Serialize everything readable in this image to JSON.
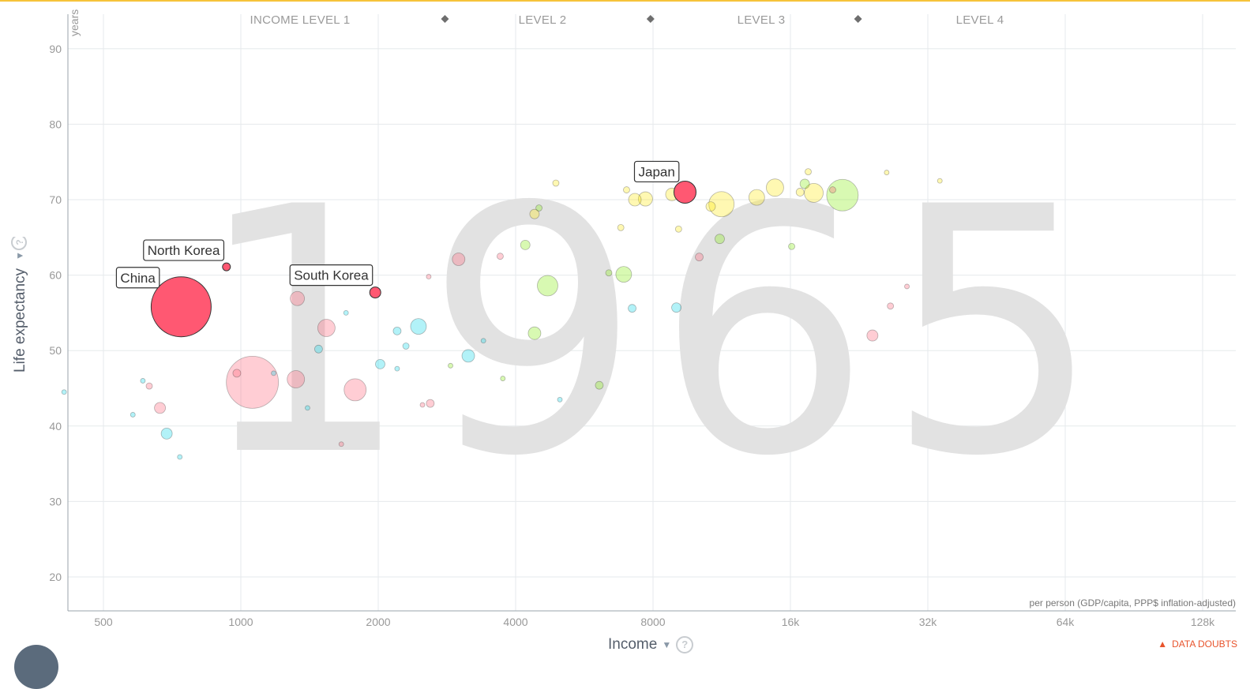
{
  "colors": {
    "accent_bar": "#f6c33b",
    "asia": "#ff5872",
    "africa": "#00d5e9",
    "americas": "#7feb00",
    "europe": "#ffe700",
    "year_text": "#e2e2e2"
  },
  "header": {
    "levels": [
      "INCOME LEVEL 1",
      "LEVEL 2",
      "LEVEL 3",
      "LEVEL 4"
    ]
  },
  "axes": {
    "y_unit": "years",
    "y_title": "Life expectancy",
    "x_title": "Income",
    "units_note": "per person (GDP/capita, PPP$ inflation-adjusted)"
  },
  "footer": {
    "data_doubts": "DATA DOUBTS"
  },
  "chart_data": {
    "type": "scatter",
    "year": "1965",
    "xlabel": "Income",
    "ylabel": "Life expectancy",
    "x_scale": "log",
    "xlim": [
      400,
      160000
    ],
    "ylim": [
      15,
      95
    ],
    "x_ticks": [
      {
        "value": 500,
        "label": "500"
      },
      {
        "value": 1000,
        "label": "1000"
      },
      {
        "value": 2000,
        "label": "2000"
      },
      {
        "value": 4000,
        "label": "4000"
      },
      {
        "value": 8000,
        "label": "8000"
      },
      {
        "value": 16000,
        "label": "16k"
      },
      {
        "value": 32000,
        "label": "32k"
      },
      {
        "value": 64000,
        "label": "64k"
      },
      {
        "value": 128000,
        "label": "128k"
      }
    ],
    "y_ticks": [
      20,
      30,
      40,
      50,
      60,
      70,
      80,
      90
    ],
    "level_markers": [
      2800,
      7900,
      22500
    ],
    "labeled_points": [
      {
        "name": "China",
        "x": 740,
        "y": 55.8,
        "size": 38,
        "region": "asia"
      },
      {
        "name": "North Korea",
        "x": 930,
        "y": 61.1,
        "size": 5,
        "region": "asia"
      },
      {
        "name": "South Korea",
        "x": 1970,
        "y": 57.7,
        "size": 7,
        "region": "asia"
      },
      {
        "name": "Japan",
        "x": 9400,
        "y": 71.0,
        "size": 14,
        "region": "asia"
      }
    ],
    "bubbles": [
      {
        "x": 1060,
        "y": 45.8,
        "size": 33,
        "region": "asia"
      },
      {
        "x": 1780,
        "y": 44.8,
        "size": 14,
        "region": "asia"
      },
      {
        "x": 1320,
        "y": 46.2,
        "size": 11,
        "region": "asia"
      },
      {
        "x": 1540,
        "y": 53.0,
        "size": 11,
        "region": "asia"
      },
      {
        "x": 1330,
        "y": 56.9,
        "size": 9,
        "region": "asia"
      },
      {
        "x": 665,
        "y": 42.4,
        "size": 7,
        "region": "asia"
      },
      {
        "x": 630,
        "y": 45.3,
        "size": 4,
        "region": "asia"
      },
      {
        "x": 980,
        "y": 47.0,
        "size": 5,
        "region": "asia"
      },
      {
        "x": 1660,
        "y": 37.6,
        "size": 3,
        "region": "asia"
      },
      {
        "x": 2600,
        "y": 43.0,
        "size": 5,
        "region": "asia"
      },
      {
        "x": 3000,
        "y": 62.1,
        "size": 8,
        "region": "asia"
      },
      {
        "x": 3700,
        "y": 62.5,
        "size": 4,
        "region": "asia"
      },
      {
        "x": 2580,
        "y": 59.8,
        "size": 3,
        "region": "asia"
      },
      {
        "x": 10100,
        "y": 62.4,
        "size": 5,
        "region": "asia"
      },
      {
        "x": 24200,
        "y": 52.0,
        "size": 7,
        "region": "asia"
      },
      {
        "x": 26500,
        "y": 55.9,
        "size": 4,
        "region": "asia"
      },
      {
        "x": 28800,
        "y": 58.5,
        "size": 3,
        "region": "asia"
      },
      {
        "x": 19800,
        "y": 71.3,
        "size": 4,
        "region": "asia"
      },
      {
        "x": 2500,
        "y": 42.8,
        "size": 3,
        "region": "asia"
      },
      {
        "x": 688,
        "y": 39.0,
        "size": 7,
        "region": "africa"
      },
      {
        "x": 2450,
        "y": 53.2,
        "size": 10,
        "region": "africa"
      },
      {
        "x": 3150,
        "y": 49.3,
        "size": 8,
        "region": "africa"
      },
      {
        "x": 2020,
        "y": 48.2,
        "size": 6,
        "region": "africa"
      },
      {
        "x": 1480,
        "y": 50.2,
        "size": 5,
        "region": "africa"
      },
      {
        "x": 2200,
        "y": 52.6,
        "size": 5,
        "region": "africa"
      },
      {
        "x": 2300,
        "y": 50.6,
        "size": 4,
        "region": "africa"
      },
      {
        "x": 1700,
        "y": 55.0,
        "size": 3,
        "region": "africa"
      },
      {
        "x": 9000,
        "y": 55.7,
        "size": 6,
        "region": "africa"
      },
      {
        "x": 7200,
        "y": 55.6,
        "size": 5,
        "region": "africa"
      },
      {
        "x": 580,
        "y": 41.5,
        "size": 3,
        "region": "africa"
      },
      {
        "x": 610,
        "y": 46.0,
        "size": 3,
        "region": "africa"
      },
      {
        "x": 1180,
        "y": 47.0,
        "size": 3,
        "region": "africa"
      },
      {
        "x": 1400,
        "y": 42.4,
        "size": 3,
        "region": "africa"
      },
      {
        "x": 2200,
        "y": 47.6,
        "size": 3,
        "region": "africa"
      },
      {
        "x": 5000,
        "y": 43.5,
        "size": 3,
        "region": "africa"
      },
      {
        "x": 3400,
        "y": 51.3,
        "size": 3,
        "region": "africa"
      },
      {
        "x": 735,
        "y": 35.9,
        "size": 3,
        "region": "africa"
      },
      {
        "x": 410,
        "y": 44.5,
        "size": 3,
        "region": "africa"
      },
      {
        "x": 4700,
        "y": 58.6,
        "size": 13,
        "region": "americas"
      },
      {
        "x": 20800,
        "y": 70.6,
        "size": 20,
        "region": "americas"
      },
      {
        "x": 6900,
        "y": 60.1,
        "size": 10,
        "region": "americas"
      },
      {
        "x": 4400,
        "y": 52.3,
        "size": 8,
        "region": "americas"
      },
      {
        "x": 4200,
        "y": 64.0,
        "size": 6,
        "region": "americas"
      },
      {
        "x": 11200,
        "y": 64.8,
        "size": 6,
        "region": "americas"
      },
      {
        "x": 6400,
        "y": 60.3,
        "size": 4,
        "region": "americas"
      },
      {
        "x": 17200,
        "y": 72.1,
        "size": 6,
        "region": "americas"
      },
      {
        "x": 16100,
        "y": 63.8,
        "size": 4,
        "region": "americas"
      },
      {
        "x": 6100,
        "y": 45.4,
        "size": 5,
        "region": "americas"
      },
      {
        "x": 3750,
        "y": 46.3,
        "size": 3,
        "region": "americas"
      },
      {
        "x": 4500,
        "y": 68.9,
        "size": 4,
        "region": "americas"
      },
      {
        "x": 2880,
        "y": 48.0,
        "size": 3,
        "region": "americas"
      },
      {
        "x": 11300,
        "y": 69.4,
        "size": 16,
        "region": "europe"
      },
      {
        "x": 14800,
        "y": 71.6,
        "size": 11,
        "region": "europe"
      },
      {
        "x": 18000,
        "y": 70.9,
        "size": 12,
        "region": "europe"
      },
      {
        "x": 13500,
        "y": 70.3,
        "size": 10,
        "region": "europe"
      },
      {
        "x": 7700,
        "y": 70.1,
        "size": 9,
        "region": "europe"
      },
      {
        "x": 7300,
        "y": 70.0,
        "size": 8,
        "region": "europe"
      },
      {
        "x": 8800,
        "y": 70.7,
        "size": 8,
        "region": "europe"
      },
      {
        "x": 10700,
        "y": 69.1,
        "size": 6,
        "region": "europe"
      },
      {
        "x": 4400,
        "y": 68.1,
        "size": 6,
        "region": "europe"
      },
      {
        "x": 6800,
        "y": 66.3,
        "size": 4,
        "region": "europe"
      },
      {
        "x": 9100,
        "y": 66.1,
        "size": 4,
        "region": "europe"
      },
      {
        "x": 17500,
        "y": 73.7,
        "size": 4,
        "region": "europe"
      },
      {
        "x": 34000,
        "y": 72.5,
        "size": 3,
        "region": "europe"
      },
      {
        "x": 26000,
        "y": 73.6,
        "size": 3,
        "region": "europe"
      },
      {
        "x": 4900,
        "y": 72.2,
        "size": 4,
        "region": "europe"
      },
      {
        "x": 7000,
        "y": 71.3,
        "size": 4,
        "region": "europe"
      },
      {
        "x": 16800,
        "y": 71.0,
        "size": 5,
        "region": "europe"
      }
    ]
  }
}
